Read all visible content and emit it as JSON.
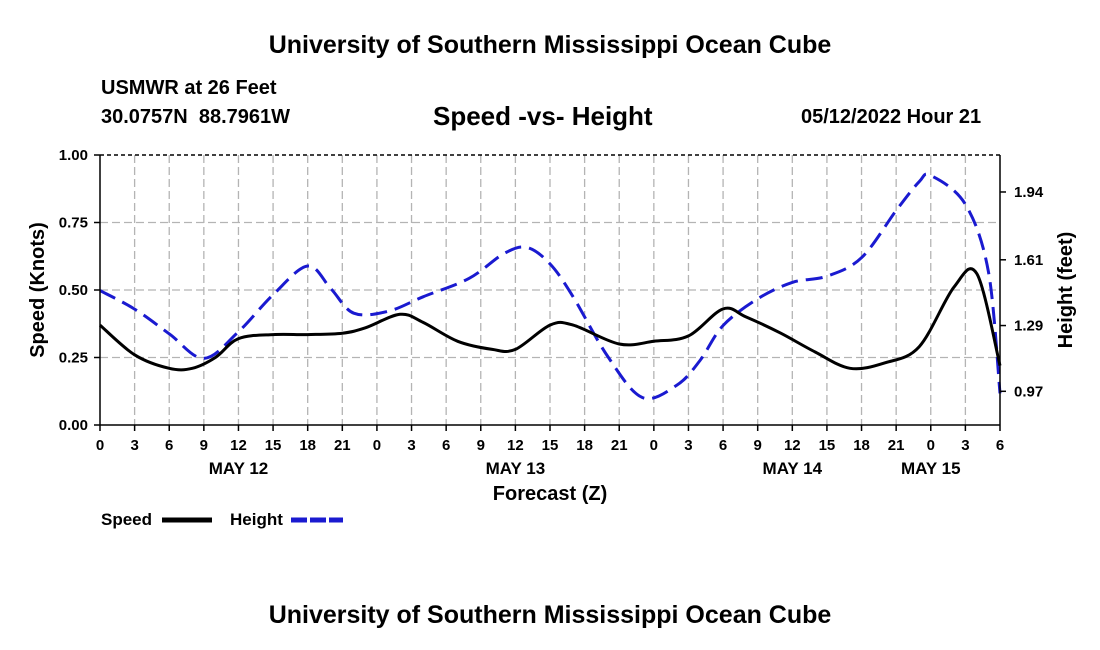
{
  "header": {
    "title": "University of Southern Mississippi Ocean Cube",
    "station": "USMWR at 26 Feet",
    "coords": "30.0757N  88.7961W",
    "chart_title": "Speed -vs- Height",
    "timestamp": "05/12/2022 Hour 21",
    "footer_title": "University of Southern Mississippi Ocean Cube"
  },
  "legend": {
    "speed": "Speed",
    "height": "Height"
  },
  "chart_data": {
    "type": "line",
    "title": "Speed -vs- Height",
    "xlabel": "Forecast (Z)",
    "ylabel": "Speed (Knots)",
    "y2label": "Height (feet)",
    "x_tick_labels": [
      "0",
      "3",
      "6",
      "9",
      "12",
      "15",
      "18",
      "21",
      "0",
      "3",
      "6",
      "9",
      "12",
      "15",
      "18",
      "21",
      "0",
      "3",
      "6",
      "9",
      "12",
      "15",
      "18",
      "21",
      "0",
      "3",
      "6"
    ],
    "day_labels": [
      {
        "label": "MAY 12",
        "hour": 12
      },
      {
        "label": "MAY 13",
        "hour": 36
      },
      {
        "label": "MAY 14",
        "hour": 60
      },
      {
        "label": "MAY 15",
        "hour": 72
      }
    ],
    "xlim": [
      0,
      78
    ],
    "ylim": [
      0,
      1.0
    ],
    "yticks": [
      "0.00",
      "0.25",
      "0.50",
      "0.75",
      "1.00"
    ],
    "y2lim": [
      0.806,
      2.12
    ],
    "y2ticks": [
      "0.97",
      "1.29",
      "1.61",
      "1.94"
    ],
    "grid": true,
    "legend_position": "bottom-left",
    "series": [
      {
        "name": "Speed",
        "axis": "left",
        "color": "#000000",
        "x": [
          0,
          3,
          6,
          8,
          10,
          12,
          15,
          18,
          21,
          23,
          26,
          28,
          31,
          34,
          36,
          39,
          41,
          45,
          48,
          51,
          54,
          56,
          59,
          62,
          65,
          68,
          71,
          74,
          76,
          78
        ],
        "values": [
          0.37,
          0.26,
          0.21,
          0.21,
          0.25,
          0.32,
          0.335,
          0.335,
          0.34,
          0.36,
          0.41,
          0.38,
          0.31,
          0.28,
          0.28,
          0.37,
          0.37,
          0.3,
          0.31,
          0.33,
          0.43,
          0.4,
          0.34,
          0.27,
          0.21,
          0.23,
          0.29,
          0.51,
          0.56,
          0.22
        ]
      },
      {
        "name": "Height",
        "axis": "right",
        "color": "#1a1ad0",
        "x": [
          0,
          3,
          6,
          9,
          12,
          15,
          18,
          20,
          22,
          25,
          28,
          32,
          35,
          37,
          39,
          41,
          44,
          47,
          50,
          52,
          54,
          57,
          60,
          63,
          66,
          69,
          71,
          72,
          75,
          77,
          78
        ],
        "values": [
          1.46,
          1.37,
          1.25,
          1.13,
          1.26,
          1.44,
          1.58,
          1.47,
          1.35,
          1.36,
          1.43,
          1.52,
          1.64,
          1.67,
          1.59,
          1.43,
          1.14,
          0.94,
          1.0,
          1.12,
          1.29,
          1.42,
          1.5,
          1.53,
          1.62,
          1.85,
          1.99,
          2.02,
          1.88,
          1.55,
          0.96
        ]
      }
    ]
  }
}
